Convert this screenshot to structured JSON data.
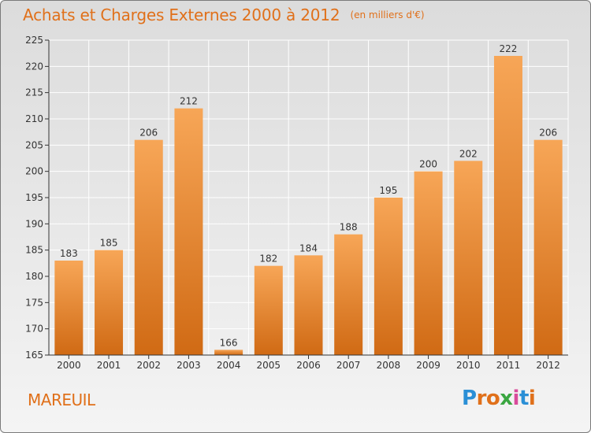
{
  "title": "Achats et Charges Externes 2000 à 2012",
  "unit": "(en milliers d'€)",
  "commune": "MAREUIL",
  "logo": {
    "text": "Proxiti"
  },
  "colors": {
    "accent": "#e0701a",
    "bar_top": "#f7a657",
    "bar_bottom": "#d06a14",
    "axis": "#333333",
    "grid": "#ffffff"
  },
  "chart_data": {
    "type": "bar",
    "categories": [
      "2000",
      "2001",
      "2002",
      "2003",
      "2004",
      "2005",
      "2006",
      "2007",
      "2008",
      "2009",
      "2010",
      "2011",
      "2012"
    ],
    "values": [
      183,
      185,
      206,
      212,
      166,
      182,
      184,
      188,
      195,
      200,
      202,
      222,
      206
    ],
    "ylim": [
      165,
      225
    ],
    "yticks": [
      165,
      170,
      175,
      180,
      185,
      190,
      195,
      200,
      205,
      210,
      215,
      220,
      225
    ],
    "grid": true,
    "data_labels": true
  }
}
